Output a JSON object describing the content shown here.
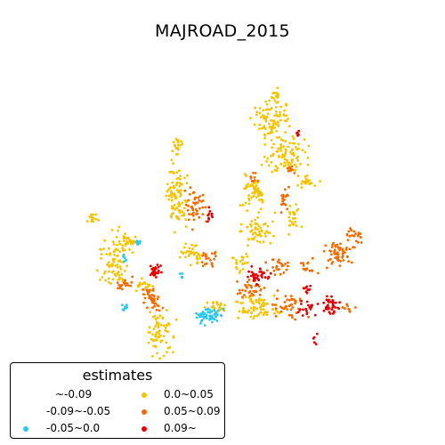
{
  "title": "MAJROAD_2015",
  "legend": {
    "title": "estimates",
    "items": [
      {
        "label": "~-0.09",
        "color": "none"
      },
      {
        "label": "0.0~0.05",
        "color": "#f5c400"
      },
      {
        "label": "-0.09~-0.05",
        "color": "none"
      },
      {
        "label": "0.05~0.09",
        "color": "#f26b00"
      },
      {
        "label": "-0.05~0.0",
        "color": "#29c8f0"
      },
      {
        "label": "0.09~",
        "color": "#e60000"
      }
    ]
  },
  "chart_data": {
    "type": "scatter",
    "title": "MAJROAD_2015",
    "legend_title": "estimates",
    "legend_position": "bottom-left",
    "categories": [
      "~-0.09",
      "-0.09~-0.05",
      "-0.05~0.0",
      "0.0~0.05",
      "0.05~0.09",
      "0.09~"
    ],
    "category_colors": {
      "-0.05~0.0": "#29c8f0",
      "0.0~0.05": "#f5c400",
      "0.05~0.09": "#f26b00",
      "0.09~": "#e60000"
    }
  }
}
